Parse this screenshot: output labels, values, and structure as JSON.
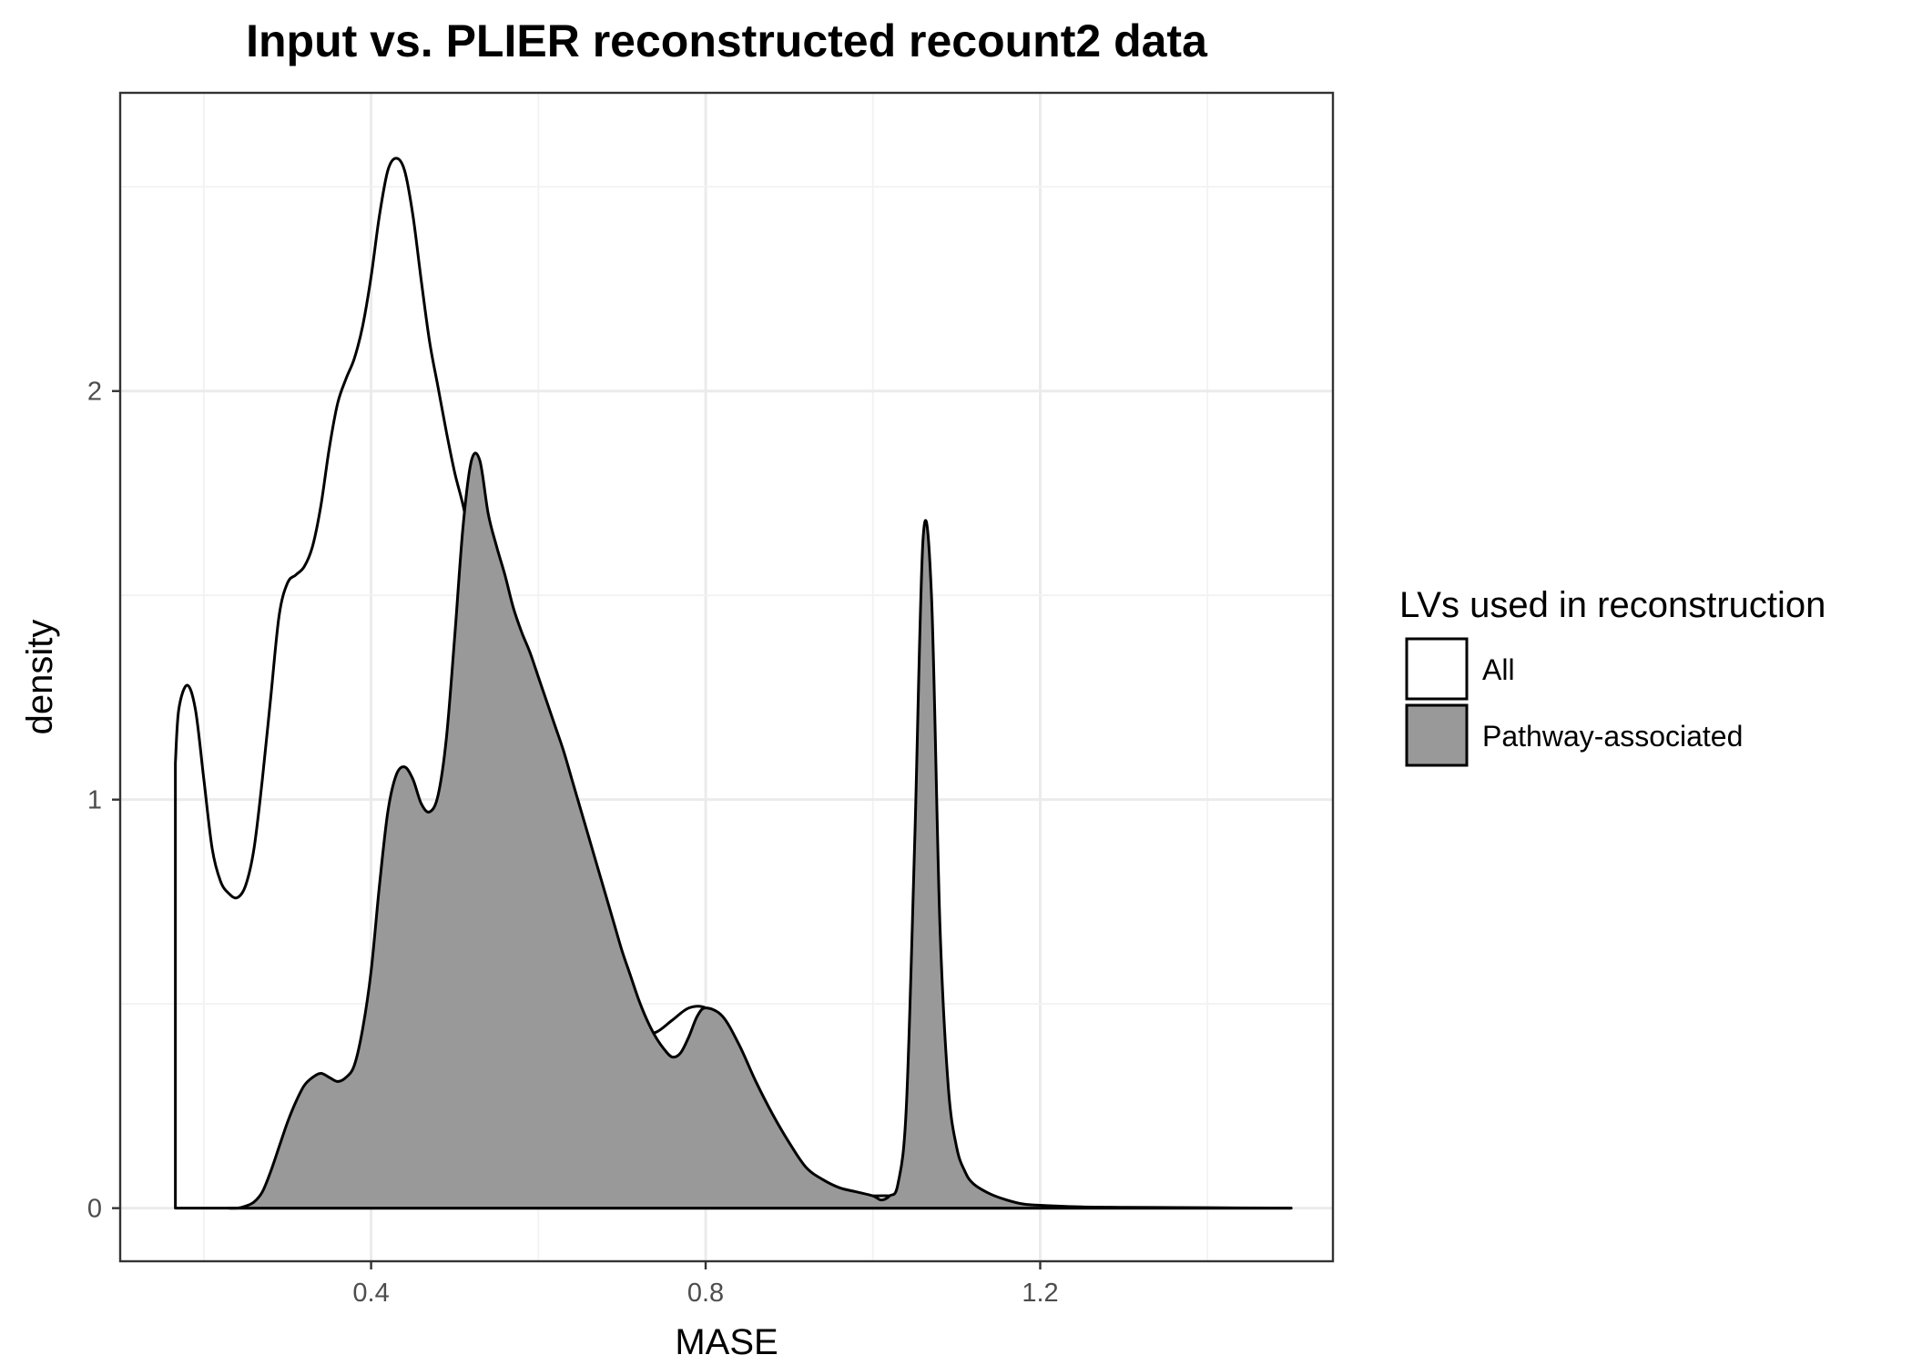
{
  "chart_data": {
    "type": "area",
    "title": "Input vs. PLIER reconstructed recount2 data",
    "xlabel": "MASE",
    "ylabel": "density",
    "xlim": [
      0.1,
      1.55
    ],
    "ylim": [
      -0.13,
      2.73
    ],
    "x_ticks": [
      0.4,
      0.8,
      1.2
    ],
    "x_tick_labels": [
      "0.4",
      "0.8",
      "1.2"
    ],
    "y_ticks": [
      0,
      1,
      2
    ],
    "y_tick_labels": [
      "0",
      "1",
      "2"
    ],
    "grid": true,
    "legend": {
      "title": "LVs used in reconstruction",
      "position": "right",
      "entries": [
        {
          "label": "All",
          "fill": "#ffffff"
        },
        {
          "label": "Pathway-associated",
          "fill": "#999999"
        }
      ]
    },
    "series": [
      {
        "name": "All",
        "fill": "#ffffff",
        "x": [
          0.166,
          0.17,
          0.18,
          0.19,
          0.2,
          0.21,
          0.22,
          0.23,
          0.24,
          0.25,
          0.26,
          0.27,
          0.28,
          0.29,
          0.3,
          0.31,
          0.32,
          0.33,
          0.34,
          0.35,
          0.36,
          0.37,
          0.38,
          0.39,
          0.4,
          0.41,
          0.42,
          0.43,
          0.44,
          0.45,
          0.46,
          0.47,
          0.48,
          0.49,
          0.5,
          0.51,
          0.52,
          0.53,
          0.54,
          0.55,
          0.56,
          0.57,
          0.58,
          0.59,
          0.6,
          0.62,
          0.64,
          0.66,
          0.68,
          0.7,
          0.72,
          0.74,
          0.76,
          0.78,
          0.8,
          0.82,
          0.84,
          0.86,
          0.87,
          0.88,
          0.9,
          0.92,
          0.94,
          0.96,
          0.98,
          1.0,
          1.02,
          1.04,
          1.06,
          1.08,
          1.1,
          1.12,
          1.14,
          1.16,
          1.18,
          1.2,
          1.22,
          1.25,
          1.3,
          1.4,
          1.5
        ],
        "y": [
          1.09,
          1.22,
          1.28,
          1.22,
          1.05,
          0.88,
          0.8,
          0.77,
          0.76,
          0.79,
          0.88,
          1.05,
          1.25,
          1.45,
          1.53,
          1.55,
          1.57,
          1.62,
          1.72,
          1.86,
          1.97,
          2.03,
          2.08,
          2.16,
          2.28,
          2.43,
          2.54,
          2.57,
          2.54,
          2.43,
          2.27,
          2.12,
          2.01,
          1.9,
          1.8,
          1.72,
          1.62,
          1.53,
          1.44,
          1.36,
          1.29,
          1.22,
          1.14,
          1.06,
          0.98,
          0.84,
          0.72,
          0.62,
          0.54,
          0.47,
          0.43,
          0.43,
          0.46,
          0.49,
          0.49,
          0.45,
          0.37,
          0.28,
          0.23,
          0.19,
          0.12,
          0.07,
          0.05,
          0.04,
          0.03,
          0.03,
          0.03,
          0.025,
          0.02,
          0.015,
          0.01,
          0.006,
          0.004,
          0.003,
          0.002,
          0.001,
          0.001,
          0.0,
          0.0,
          0.0,
          0.0
        ]
      },
      {
        "name": "Pathway-associated",
        "fill": "#999999",
        "x": [
          0.23,
          0.24,
          0.25,
          0.26,
          0.27,
          0.28,
          0.29,
          0.3,
          0.31,
          0.32,
          0.33,
          0.34,
          0.35,
          0.36,
          0.37,
          0.38,
          0.39,
          0.4,
          0.41,
          0.42,
          0.43,
          0.44,
          0.45,
          0.46,
          0.47,
          0.48,
          0.49,
          0.5,
          0.51,
          0.52,
          0.53,
          0.54,
          0.55,
          0.56,
          0.57,
          0.58,
          0.59,
          0.6,
          0.61,
          0.62,
          0.63,
          0.64,
          0.65,
          0.66,
          0.67,
          0.68,
          0.69,
          0.7,
          0.71,
          0.72,
          0.73,
          0.74,
          0.75,
          0.76,
          0.77,
          0.78,
          0.79,
          0.8,
          0.82,
          0.84,
          0.86,
          0.88,
          0.9,
          0.92,
          0.94,
          0.96,
          0.98,
          1.0,
          1.01,
          1.02,
          1.03,
          1.04,
          1.05,
          1.06,
          1.07,
          1.08,
          1.09,
          1.1,
          1.11,
          1.12,
          1.14,
          1.16,
          1.18,
          1.2,
          1.25,
          1.3,
          1.4,
          1.5
        ],
        "y": [
          0.0,
          0.0,
          0.005,
          0.015,
          0.04,
          0.09,
          0.15,
          0.21,
          0.26,
          0.3,
          0.32,
          0.33,
          0.32,
          0.31,
          0.32,
          0.35,
          0.44,
          0.58,
          0.79,
          0.97,
          1.06,
          1.08,
          1.05,
          0.99,
          0.97,
          1.01,
          1.15,
          1.4,
          1.67,
          1.83,
          1.83,
          1.7,
          1.62,
          1.55,
          1.47,
          1.41,
          1.36,
          1.3,
          1.24,
          1.18,
          1.12,
          1.05,
          0.98,
          0.91,
          0.84,
          0.77,
          0.7,
          0.63,
          0.57,
          0.51,
          0.46,
          0.42,
          0.39,
          0.37,
          0.38,
          0.42,
          0.47,
          0.49,
          0.47,
          0.4,
          0.31,
          0.23,
          0.16,
          0.1,
          0.07,
          0.05,
          0.04,
          0.03,
          0.02,
          0.03,
          0.06,
          0.25,
          0.9,
          1.64,
          1.5,
          0.7,
          0.3,
          0.15,
          0.09,
          0.06,
          0.035,
          0.02,
          0.01,
          0.007,
          0.003,
          0.002,
          0.001,
          0.0
        ]
      }
    ]
  }
}
